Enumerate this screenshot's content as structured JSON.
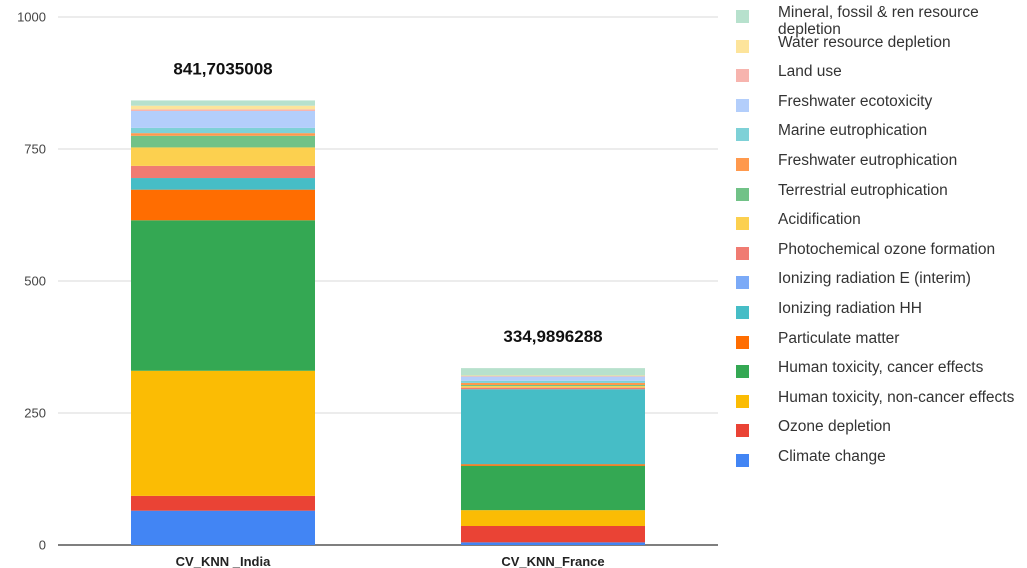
{
  "chart_data": {
    "type": "bar",
    "stacked": true,
    "categories": [
      "CV_KNN _India",
      "CV_KNN_France"
    ],
    "totals_labels": [
      "841,7035008",
      "334,9896288"
    ],
    "totals": [
      841.7035008,
      334.9896288
    ],
    "ylim": [
      0,
      1000
    ],
    "yticks": [
      0,
      250,
      500,
      750,
      1000
    ],
    "grid": true,
    "legend_position": "right",
    "series": [
      {
        "name": "Climate change",
        "color": "#4285f4",
        "values": [
          65,
          5
        ]
      },
      {
        "name": "Ozone depletion",
        "color": "#ea4335",
        "values": [
          28,
          31
        ]
      },
      {
        "name": "Human toxicity, non-cancer effects",
        "color": "#fbbc04",
        "values": [
          237,
          30
        ]
      },
      {
        "name": "Human toxicity, cancer effects",
        "color": "#34a853",
        "values": [
          285,
          84
        ]
      },
      {
        "name": "Particulate matter",
        "color": "#ff6d01",
        "values": [
          58,
          3
        ]
      },
      {
        "name": "Ionizing radiation HH",
        "color": "#46bdc6",
        "values": [
          22,
          142
        ]
      },
      {
        "name": "Ionizing radiation E (interim)",
        "color": "#7baaf7",
        "values": [
          0,
          0
        ]
      },
      {
        "name": "Photochemical ozone formation",
        "color": "#f07b72",
        "values": [
          23,
          3
        ]
      },
      {
        "name": "Acidification",
        "color": "#fcd04f",
        "values": [
          35,
          3
        ]
      },
      {
        "name": "Terrestrial eutrophication",
        "color": "#71c287",
        "values": [
          22,
          2
        ]
      },
      {
        "name": "Freshwater eutrophication",
        "color": "#ff994d",
        "values": [
          5,
          4
        ]
      },
      {
        "name": "Marine eutrophication",
        "color": "#7ed1d7",
        "values": [
          10,
          4
        ]
      },
      {
        "name": "Freshwater ecotoxicity",
        "color": "#b3cefb",
        "values": [
          32,
          8
        ]
      },
      {
        "name": "Land use",
        "color": "#f7b4ae",
        "values": [
          3,
          1
        ]
      },
      {
        "name": "Water resource depletion",
        "color": "#fde49b",
        "values": [
          7,
          1
        ]
      },
      {
        "name": "Mineral, fossil & ren resource depletion",
        "color": "#b7e1cd",
        "values": [
          10,
          14
        ]
      }
    ]
  }
}
